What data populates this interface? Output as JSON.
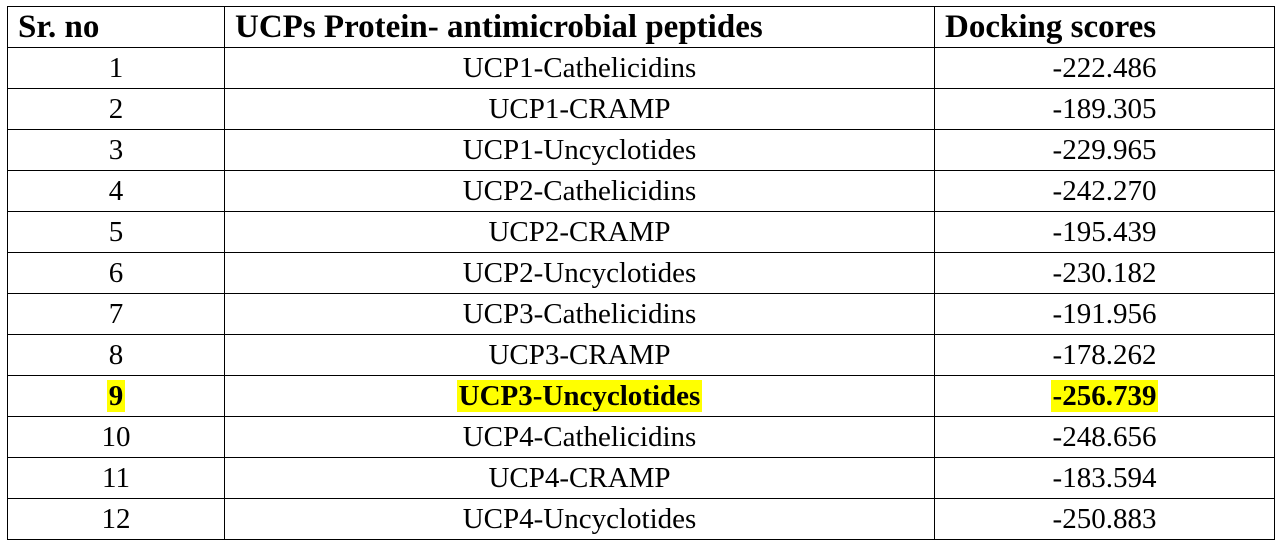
{
  "table": {
    "headers": {
      "sr_no": "Sr. no",
      "protein": "UCPs Protein- antimicrobial peptides",
      "score": "Docking scores"
    },
    "rows": [
      {
        "sr": "1",
        "protein": "UCP1-Cathelicidins",
        "score": "-222.486"
      },
      {
        "sr": "2",
        "protein": "UCP1-CRAMP",
        "score": "-189.305"
      },
      {
        "sr": "3",
        "protein": "UCP1-Uncyclotides",
        "score": "-229.965"
      },
      {
        "sr": "4",
        "protein": "UCP2-Cathelicidins",
        "score": "-242.270"
      },
      {
        "sr": "5",
        "protein": "UCP2-CRAMP",
        "score": "-195.439"
      },
      {
        "sr": "6",
        "protein": "UCP2-Uncyclotides",
        "score": "-230.182"
      },
      {
        "sr": "7",
        "protein": "UCP3-Cathelicidins",
        "score": "-191.956"
      },
      {
        "sr": "8",
        "protein": "UCP3-CRAMP",
        "score": "-178.262"
      },
      {
        "sr": "9",
        "protein": "UCP3-Uncyclotides",
        "score": "-256.739"
      },
      {
        "sr": "10",
        "protein": "UCP4-Cathelicidins",
        "score": "-248.656"
      },
      {
        "sr": "11",
        "protein": "UCP4-CRAMP",
        "score": "-183.594"
      },
      {
        "sr": "12",
        "protein": "UCP4-Uncyclotides",
        "score": "-250.883"
      }
    ],
    "highlighted_row": "9",
    "highlight_color": "#ffff00"
  }
}
